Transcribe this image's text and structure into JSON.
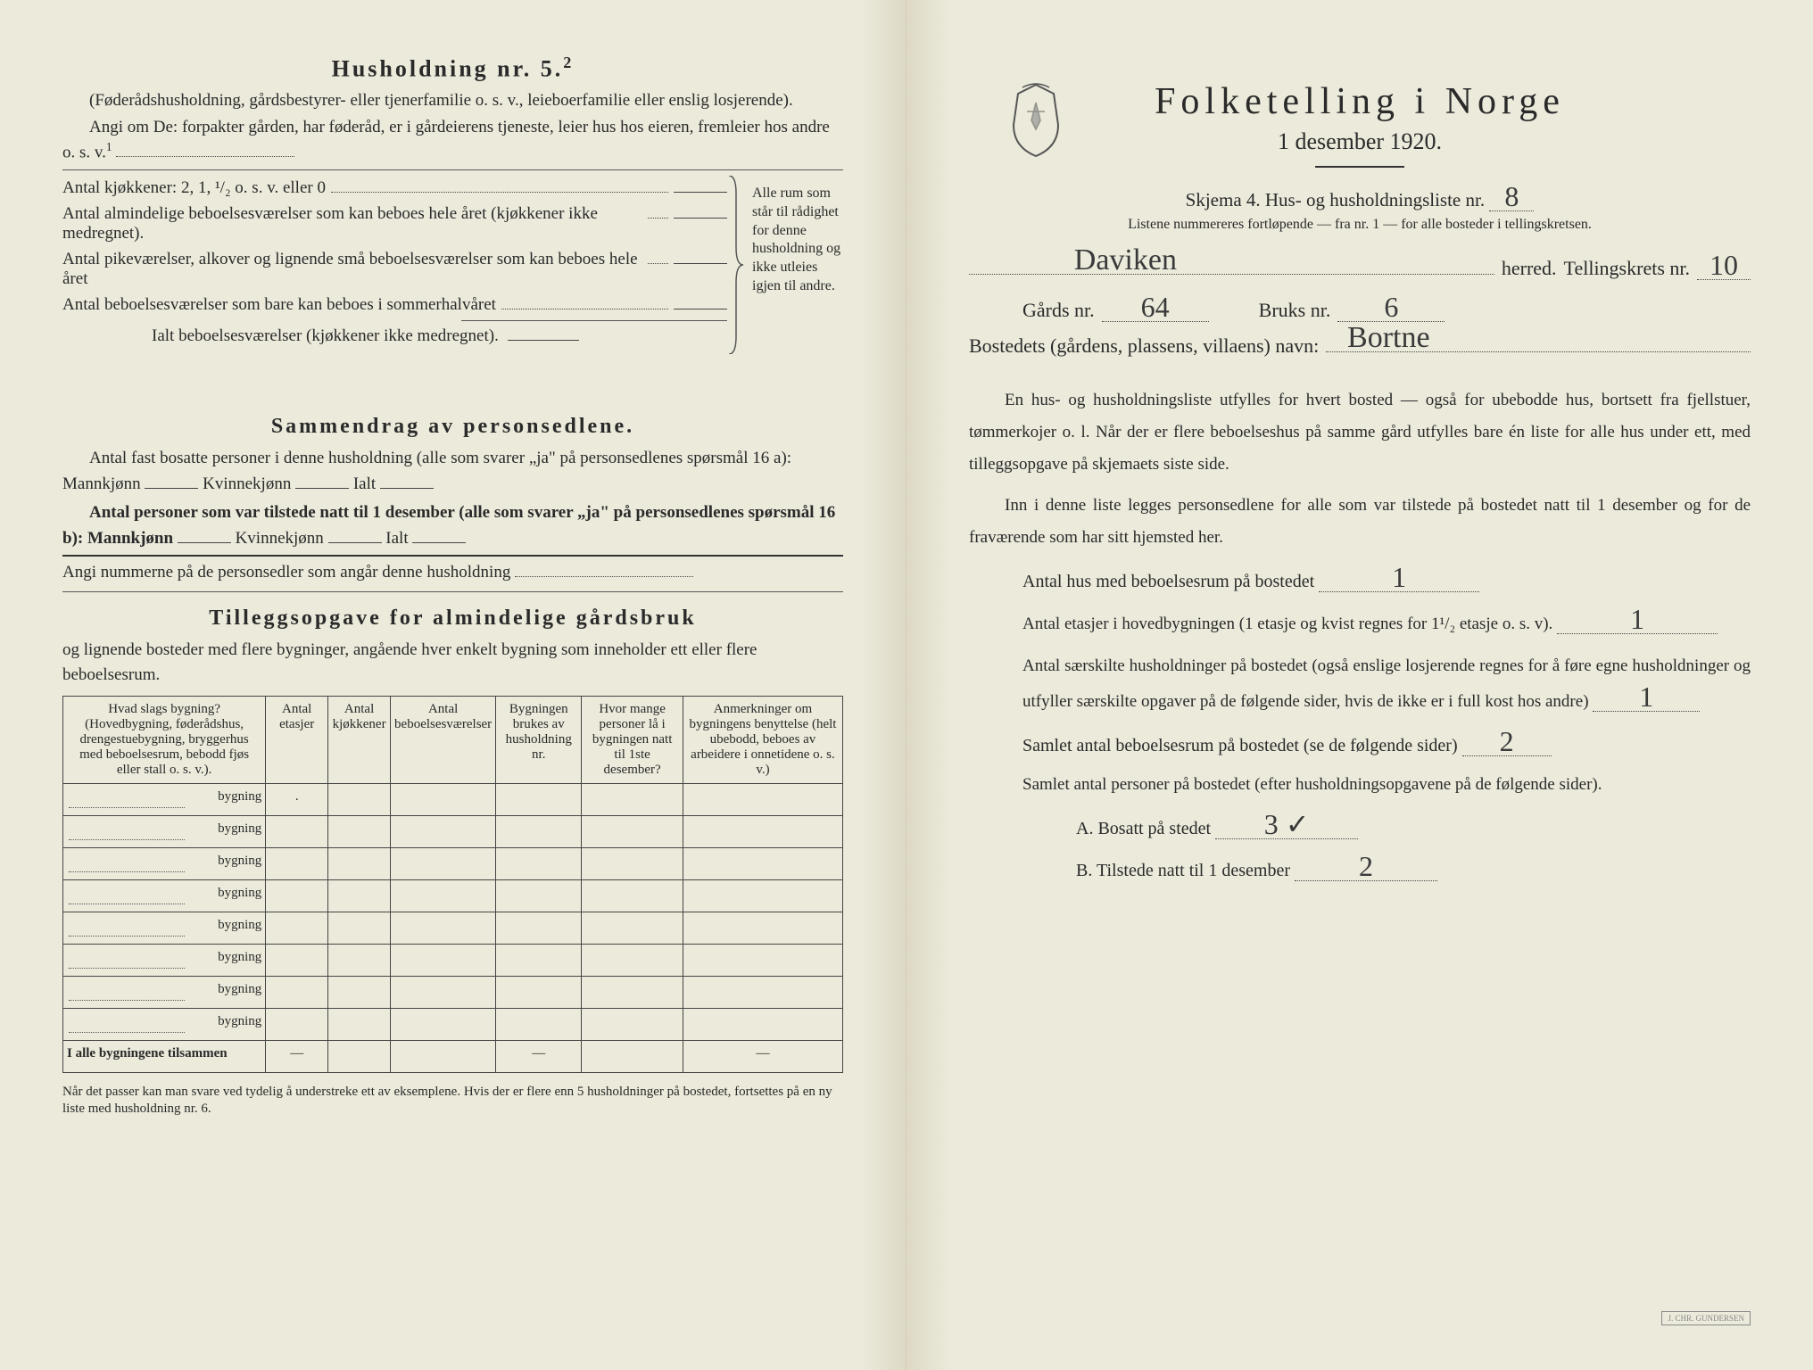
{
  "left": {
    "title": "Husholdning nr. 5.",
    "title_sup": "2",
    "intro": "(Føderådshusholdning, gårdsbestyrer- eller tjenerfamilie o. s. v., leieboerfamilie eller enslig losjerende).",
    "angi": "Angi om De: forpakter gården, har føderåd, er i gårdeierens tjeneste, leier hus hos eieren, fremleier hos andre o. s. v.",
    "angi_sup": "1",
    "rows": [
      "Antal kjøkkener: 2, 1, ¹/₂ o. s. v. eller 0",
      "Antal almindelige beboelsesværelser som kan beboes hele året (kjøkkener ikke medregnet).",
      "Antal pikeværelser, alkover og lignende små beboelsesværelser som kan beboes hele året",
      "Antal beboelsesværelser som bare kan beboes i sommerhalvåret"
    ],
    "ialt": "Ialt beboelsesværelser (kjøkkener ikke medregnet).",
    "brace_note": "Alle rum som står til rådighet for denne husholdning og ikke utleies igjen til andre.",
    "sammendrag_title": "Sammendrag av personsedlene.",
    "sammendrag_1": "Antal fast bosatte personer i denne husholdning (alle som svarer „ja\" på personsedlenes spørsmål 16 a): Mannkjønn",
    "kvinne": "Kvinnekjønn",
    "ialt_label": "Ialt",
    "sammendrag_2": "Antal personer som var tilstede natt til 1 desember (alle som svarer „ja\" på personsedlenes spørsmål 16 b): Mannkjønn",
    "angi_nr": "Angi nummerne på de personsedler som angår denne husholdning",
    "tillegg_title": "Tilleggsopgave for almindelige gårdsbruk",
    "tillegg_sub": "og lignende bosteder med flere bygninger, angående hver enkelt bygning som inneholder ett eller flere beboelsesrum.",
    "table": {
      "headers": [
        "Hvad slags bygning?\n(Hovedbygning, føderådshus, drengestuebygning, bryggerhus med beboelsesrum, bebodd fjøs eller stall o. s. v.).",
        "Antal etasjer",
        "Antal kjøkkener",
        "Antal beboelsesværelser",
        "Bygningen brukes av husholdning nr.",
        "Hvor mange personer lå i bygningen natt til 1ste desember?",
        "Anmerkninger om bygningens benyttelse (helt ubebodd, beboes av arbeidere i onnetidene o. s. v.)"
      ],
      "row_suffix": "bygning",
      "row_count": 8,
      "total_label": "I alle bygningene tilsammen"
    },
    "footnote": "Når det passer kan man svare ved tydelig å understreke ett av eksemplene.\nHvis der er flere enn 5 husholdninger på bostedet, fortsettes på en ny liste med husholdning nr. 6."
  },
  "right": {
    "main_title": "Folketelling i Norge",
    "date": "1 desember 1920.",
    "skjema": "Skjema 4.  Hus- og husholdningsliste nr.",
    "skjema_nr": "8",
    "listene": "Listene nummereres fortløpende — fra nr. 1 — for alle bosteder i tellingskretsen.",
    "herred_value": "Daviken",
    "herred_label": "herred.",
    "tellingskrets_label": "Tellingskrets nr.",
    "tellingskrets_nr": "10",
    "gards_label": "Gårds nr.",
    "gards_nr": "64",
    "bruks_label": "Bruks nr.",
    "bruks_nr": "6",
    "bosted_label": "Bostedets (gårdens, plassens, villaens) navn:",
    "bosted_value": "Bortne",
    "para1": "En hus- og husholdningsliste utfylles for hvert bosted — også for ubebodde hus, bortsett fra fjellstuer, tømmerkojer o. l.  Når der er flere beboelseshus på samme gård utfylles bare én liste for alle hus under ett, med tilleggsopgave på skjemaets siste side.",
    "para2": "Inn i denne liste legges personsedlene for alle som var tilstede på bostedet natt til 1 desember og for de fraværende som har sitt hjemsted her.",
    "field1_label": "Antal hus med beboelsesrum på bostedet",
    "field1_value": "1",
    "field2_label_a": "Antal etasjer i hovedbygningen (1 etasje og kvist regnes for 1¹/₂ etasje o. s. v).",
    "field2_value": "1",
    "field3_label": "Antal særskilte husholdninger på bostedet (også enslige losjerende regnes for å føre egne husholdninger og utfyller særskilte opgaver på de følgende sider, hvis de ikke er i full kost hos andre)",
    "field3_value": "1",
    "field4_label": "Samlet antal beboelsesrum på bostedet (se de følgende sider)",
    "field4_value": "2",
    "field5_label": "Samlet antal personer på bostedet (efter husholdningsopgavene på de følgende sider).",
    "field5a_label": "A.  Bosatt på stedet",
    "field5a_value": "3 ✓",
    "field5b_label": "B.  Tilstede natt til 1 desember",
    "field5b_value": "2",
    "stamp": "J. CHR. GUNDERSEN"
  },
  "colors": {
    "paper": "#eceadb",
    "ink": "#2a2a2a",
    "handwriting": "#3a3a3a"
  }
}
